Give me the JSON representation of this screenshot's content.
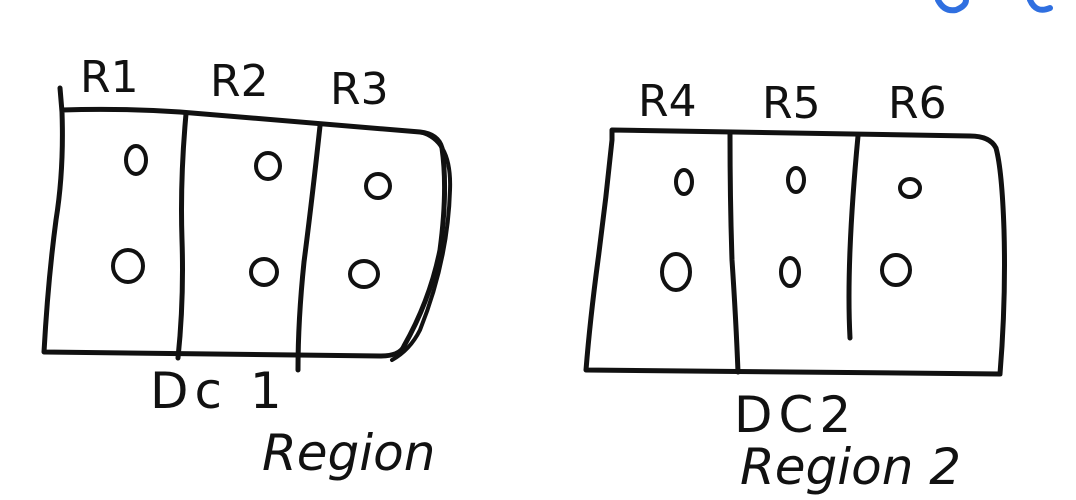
{
  "diagram": {
    "datacenter_1": {
      "racks": [
        "R1",
        "R2",
        "R3"
      ],
      "label": "Dc 1",
      "region_label": "Region"
    },
    "datacenter_2": {
      "racks": [
        "R4",
        "R5",
        "R6"
      ],
      "label": "DC2",
      "region_label": "Region 2"
    }
  },
  "colors": {
    "ink": "#111111",
    "accent": "#2f6fe0"
  }
}
